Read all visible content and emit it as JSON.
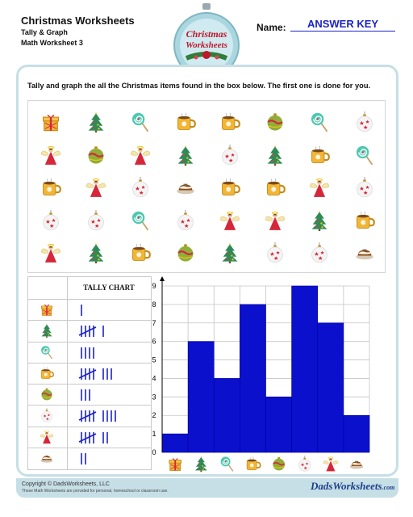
{
  "header": {
    "title": "Christmas Worksheets",
    "subtitle": "Tally & Graph",
    "worksheet": "Math Worksheet 3",
    "ornament_line1": "Christmas",
    "ornament_line2": "Worksheets",
    "name_label": "Name:",
    "answer_key": "ANSWER KEY"
  },
  "instructions": "Tally and graph the all the Christmas items found in the box below.  The first one is done for you.",
  "items_grid": [
    [
      "gift-icon",
      "tree-icon",
      "lollipop-icon",
      "mug-icon",
      "mug-icon",
      "ornament-icon",
      "lollipop-icon",
      "bauble-icon"
    ],
    [
      "angel-icon",
      "ornament-icon",
      "angel-icon",
      "tree-icon",
      "bauble-icon",
      "tree-icon",
      "mug-icon",
      "lollipop-icon"
    ],
    [
      "mug-icon",
      "angel-icon",
      "bauble-icon",
      "pudding-icon",
      "mug-icon",
      "mug-icon",
      "angel-icon",
      "bauble-icon"
    ],
    [
      "bauble-icon",
      "bauble-icon",
      "lollipop-icon",
      "bauble-icon",
      "angel-icon",
      "angel-icon",
      "tree-icon",
      "mug-icon"
    ],
    [
      "angel-icon",
      "tree-icon",
      "mug-icon",
      "ornament-icon",
      "tree-icon",
      "bauble-icon",
      "bauble-icon",
      "pudding-icon"
    ]
  ],
  "tally": {
    "header": "TALLY CHART",
    "rows": [
      {
        "icon": "gift-icon",
        "count": 1
      },
      {
        "icon": "tree-icon",
        "count": 6
      },
      {
        "icon": "lollipop-icon",
        "count": 4
      },
      {
        "icon": "mug-icon",
        "count": 8
      },
      {
        "icon": "ornament-icon",
        "count": 3
      },
      {
        "icon": "bauble-icon",
        "count": 9
      },
      {
        "icon": "angel-icon",
        "count": 7
      },
      {
        "icon": "pudding-icon",
        "count": 2
      }
    ]
  },
  "chart_data": {
    "type": "bar",
    "categories": [
      "gift-icon",
      "tree-icon",
      "lollipop-icon",
      "mug-icon",
      "ornament-icon",
      "bauble-icon",
      "angel-icon",
      "pudding-icon"
    ],
    "values": [
      1,
      6,
      4,
      8,
      3,
      9,
      7,
      2
    ],
    "ylim": [
      0,
      9
    ],
    "yticks": [
      "0",
      "1",
      "2",
      "3",
      "4",
      "5",
      "6",
      "7",
      "8",
      "9"
    ],
    "grid": true,
    "bar_color": "#0a10cc"
  },
  "footer": {
    "copyright": "Copyright © DadsWorksheets, LLC",
    "note": "These Math Worksheets are provided for personal, homeschool or classroom use.",
    "logo_main": "DadsWorksheets",
    "logo_suffix": ".com"
  },
  "colors": {
    "accent_blue": "#1b23c8",
    "frame": "#c6dfe6",
    "tally_blue": "#1b23c8"
  }
}
